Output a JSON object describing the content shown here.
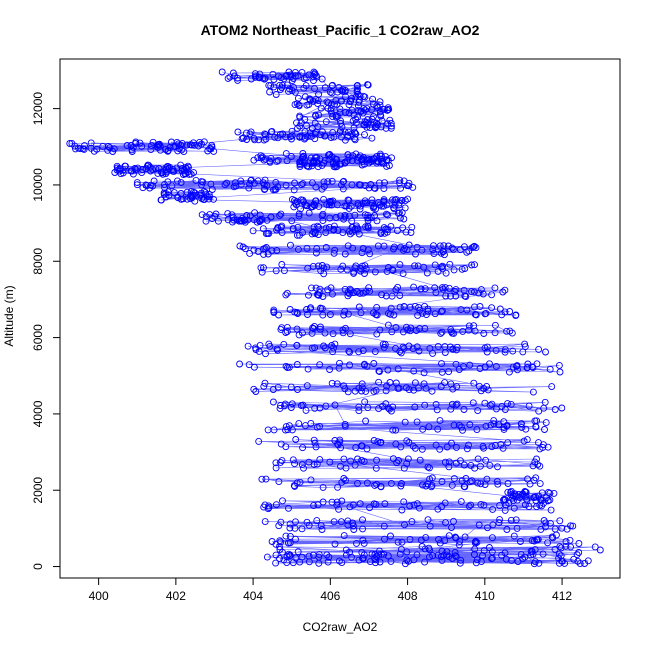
{
  "chart_data": {
    "type": "scatter",
    "title": "ATOM2 Northeast_Pacific_1 CO2raw_AO2",
    "xlabel": "CO2raw_AO2",
    "ylabel": "Altitude (m)",
    "xlim": [
      399,
      413.5
    ],
    "ylim": [
      -300,
      13300
    ],
    "xticks": [
      400,
      402,
      404,
      406,
      408,
      410,
      412
    ],
    "yticks": [
      0,
      2000,
      4000,
      6000,
      8000,
      10000,
      12000
    ],
    "point_style": "open-circle",
    "connect_points": true,
    "grid": false,
    "legend": "none",
    "series_color": "#0000ff",
    "point_clusters": [
      {
        "altitude": 12850,
        "x_min": 403.2,
        "x_max": 405.8,
        "density": 45
      },
      {
        "altitude": 12500,
        "x_min": 404.4,
        "x_max": 407.0,
        "density": 40
      },
      {
        "altitude": 12200,
        "x_min": 405.0,
        "x_max": 407.3,
        "density": 40
      },
      {
        "altitude": 11900,
        "x_min": 405.2,
        "x_max": 407.6,
        "density": 40
      },
      {
        "altitude": 11600,
        "x_min": 405.0,
        "x_max": 407.7,
        "density": 40
      },
      {
        "altitude": 11300,
        "x_min": 403.6,
        "x_max": 407.1,
        "density": 60
      },
      {
        "altitude": 11000,
        "x_min": 399.2,
        "x_max": 403.0,
        "density": 70
      },
      {
        "altitude": 10700,
        "x_min": 404.0,
        "x_max": 407.6,
        "density": 50
      },
      {
        "altitude": 10600,
        "x_min": 405.2,
        "x_max": 407.6,
        "density": 60
      },
      {
        "altitude": 10400,
        "x_min": 400.4,
        "x_max": 402.5,
        "density": 60
      },
      {
        "altitude": 10000,
        "x_min": 401.0,
        "x_max": 408.2,
        "density": 80
      },
      {
        "altitude": 9700,
        "x_min": 401.6,
        "x_max": 403.0,
        "density": 40
      },
      {
        "altitude": 9500,
        "x_min": 405.0,
        "x_max": 408.0,
        "density": 70
      },
      {
        "altitude": 9150,
        "x_min": 402.6,
        "x_max": 408.0,
        "density": 70
      },
      {
        "altitude": 8800,
        "x_min": 404.0,
        "x_max": 408.2,
        "density": 60
      },
      {
        "altitude": 8300,
        "x_min": 403.6,
        "x_max": 409.8,
        "density": 60
      },
      {
        "altitude": 7800,
        "x_min": 404.2,
        "x_max": 409.8,
        "density": 50
      },
      {
        "altitude": 7200,
        "x_min": 404.8,
        "x_max": 410.6,
        "density": 60
      },
      {
        "altitude": 6700,
        "x_min": 404.4,
        "x_max": 411.0,
        "density": 60
      },
      {
        "altitude": 6200,
        "x_min": 404.6,
        "x_max": 410.8,
        "density": 50
      },
      {
        "altitude": 5700,
        "x_min": 403.8,
        "x_max": 411.6,
        "density": 60
      },
      {
        "altitude": 5200,
        "x_min": 403.6,
        "x_max": 412.0,
        "density": 50
      },
      {
        "altitude": 4700,
        "x_min": 404.0,
        "x_max": 411.8,
        "density": 50
      },
      {
        "altitude": 4200,
        "x_min": 404.4,
        "x_max": 412.0,
        "density": 50
      },
      {
        "altitude": 3700,
        "x_min": 404.2,
        "x_max": 411.8,
        "density": 50
      },
      {
        "altitude": 3200,
        "x_min": 404.0,
        "x_max": 411.8,
        "density": 50
      },
      {
        "altitude": 2700,
        "x_min": 404.4,
        "x_max": 411.6,
        "density": 50
      },
      {
        "altitude": 2200,
        "x_min": 404.2,
        "x_max": 411.8,
        "density": 50
      },
      {
        "altitude": 1850,
        "x_min": 410.4,
        "x_max": 411.8,
        "density": 40
      },
      {
        "altitude": 1600,
        "x_min": 404.2,
        "x_max": 412.0,
        "density": 50
      },
      {
        "altitude": 1100,
        "x_min": 404.2,
        "x_max": 412.4,
        "density": 50
      },
      {
        "altitude": 700,
        "x_min": 404.4,
        "x_max": 412.6,
        "density": 50
      },
      {
        "altitude": 400,
        "x_min": 404.6,
        "x_max": 413.0,
        "density": 40
      },
      {
        "altitude": 200,
        "x_min": 404.0,
        "x_max": 412.8,
        "density": 90
      }
    ]
  }
}
